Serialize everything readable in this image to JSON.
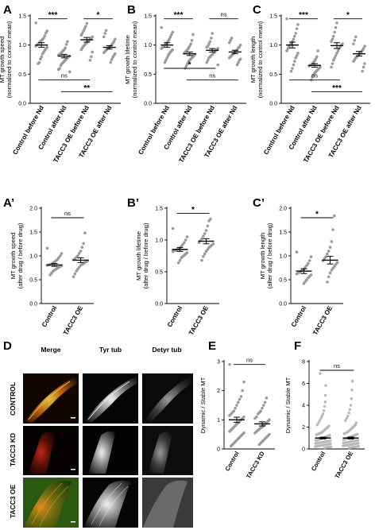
{
  "figure": {
    "panel_letters": [
      "A",
      "B",
      "C",
      "A’",
      "B’",
      "C’",
      "D",
      "E",
      "F"
    ]
  },
  "chart_data": [
    {
      "panel": "A",
      "type": "scatter",
      "ylabel": [
        "MT growth speed",
        "(normalized to control mean)"
      ],
      "categories": [
        "Control before Nd",
        "Control after Nd",
        "TACC3 OE before Nd",
        "TACC3 OE after Nd"
      ],
      "ylim": [
        0.0,
        1.5
      ],
      "yticks": [
        "0.0",
        "0.5",
        "1.0",
        "1.5"
      ],
      "means": [
        1.0,
        0.81,
        1.09,
        0.96
      ],
      "sem": [
        0.04,
        0.03,
        0.04,
        0.03
      ],
      "points": [
        [
          1.38,
          1.24,
          1.21,
          1.16,
          1.12,
          1.1,
          1.08,
          1.06,
          1.04,
          1.02,
          1.0,
          0.98,
          0.96,
          0.94,
          0.91,
          0.88,
          0.85,
          0.8,
          0.76,
          0.7,
          0.68
        ],
        [
          1.06,
          1.01,
          0.95,
          0.92,
          0.9,
          0.88,
          0.86,
          0.84,
          0.83,
          0.81,
          0.8,
          0.78,
          0.76,
          0.74,
          0.72,
          0.7,
          0.68,
          0.65,
          0.6,
          0.58,
          0.54
        ],
        [
          1.37,
          1.32,
          1.28,
          1.24,
          1.2,
          1.17,
          1.14,
          1.12,
          1.1,
          1.08,
          1.06,
          1.04,
          1.02,
          1.0,
          0.98,
          0.95,
          0.92,
          0.88,
          0.8,
          0.74
        ],
        [
          1.25,
          1.2,
          1.14,
          1.1,
          1.06,
          1.03,
          1.0,
          0.98,
          0.96,
          0.95,
          0.93,
          0.91,
          0.89,
          0.87,
          0.85,
          0.82,
          0.79,
          0.75,
          0.7
        ]
      ],
      "significance": [
        {
          "from": 0,
          "to": 1,
          "label": "***",
          "level": 1.45
        },
        {
          "from": 2,
          "to": 3,
          "label": "*",
          "level": 1.45
        },
        {
          "from": 0,
          "to": 2,
          "label": "ns",
          "level": 0.4
        },
        {
          "from": 1,
          "to": 3,
          "label": "**",
          "level": 0.2
        }
      ]
    },
    {
      "panel": "B",
      "type": "scatter",
      "ylabel": [
        "MT growth lifetime",
        "(normalized to control mean)"
      ],
      "categories": [
        "Control before Nd",
        "Control after Nd",
        "TACC3 OE before Nd",
        "TACC3 OE after Nd"
      ],
      "ylim": [
        0.0,
        1.5
      ],
      "yticks": [
        "0.0",
        "0.5",
        "1.0",
        "1.5"
      ],
      "means": [
        1.0,
        0.85,
        0.91,
        0.88
      ],
      "sem": [
        0.04,
        0.03,
        0.03,
        0.03
      ],
      "points": [
        [
          1.3,
          1.22,
          1.18,
          1.14,
          1.1,
          1.07,
          1.04,
          1.02,
          1.0,
          0.98,
          0.96,
          0.94,
          0.92,
          0.9,
          0.88,
          0.85,
          0.82,
          0.78,
          0.74,
          0.7
        ],
        [
          1.18,
          1.08,
          1.02,
          0.98,
          0.95,
          0.92,
          0.9,
          0.88,
          0.86,
          0.84,
          0.82,
          0.8,
          0.78,
          0.76,
          0.74,
          0.72,
          0.68,
          0.64,
          0.6
        ],
        [
          1.2,
          1.12,
          1.06,
          1.02,
          0.98,
          0.96,
          0.94,
          0.92,
          0.9,
          0.88,
          0.86,
          0.84,
          0.82,
          0.8,
          0.78,
          0.74,
          0.7,
          0.66
        ],
        [
          1.12,
          1.08,
          1.04,
          1.0,
          0.97,
          0.95,
          0.92,
          0.9,
          0.88,
          0.86,
          0.84,
          0.82,
          0.8,
          0.78,
          0.76,
          0.74,
          0.7,
          0.66
        ]
      ],
      "significance": [
        {
          "from": 0,
          "to": 1,
          "label": "***",
          "level": 1.45
        },
        {
          "from": 2,
          "to": 3,
          "label": "ns",
          "level": 1.45
        },
        {
          "from": 0,
          "to": 2,
          "label": "*",
          "level": 0.6
        },
        {
          "from": 1,
          "to": 3,
          "label": "ns",
          "level": 0.4
        }
      ]
    },
    {
      "panel": "C",
      "type": "scatter",
      "ylabel": [
        "MT growth length",
        "(normalized to control mean)"
      ],
      "categories": [
        "Control before Nd",
        "Control after Nd",
        "TACC3 OE before Nd",
        "TACC3 OE after Nd"
      ],
      "ylim": [
        0.0,
        1.5
      ],
      "yticks": [
        "0.0",
        "0.5",
        "1.0",
        "1.5"
      ],
      "means": [
        1.0,
        0.65,
        0.99,
        0.85
      ],
      "sem": [
        0.05,
        0.03,
        0.05,
        0.04
      ],
      "points": [
        [
          1.45,
          1.35,
          1.28,
          1.2,
          1.15,
          1.1,
          1.06,
          1.03,
          1.0,
          0.97,
          0.94,
          0.9,
          0.86,
          0.82,
          0.78,
          0.72,
          0.66,
          0.6,
          0.55
        ],
        [
          0.9,
          0.8,
          0.76,
          0.73,
          0.7,
          0.68,
          0.66,
          0.65,
          0.64,
          0.62,
          0.6,
          0.58,
          0.56,
          0.54,
          0.52,
          0.49,
          0.45,
          0.4
        ],
        [
          1.38,
          1.3,
          1.22,
          1.15,
          1.1,
          1.06,
          1.02,
          1.0,
          0.97,
          0.94,
          0.9,
          0.86,
          0.82,
          0.78,
          0.74,
          0.68,
          0.62
        ],
        [
          1.14,
          1.08,
          1.02,
          0.98,
          0.94,
          0.91,
          0.88,
          0.86,
          0.84,
          0.82,
          0.8,
          0.78,
          0.75,
          0.72,
          0.68,
          0.62,
          0.55
        ]
      ],
      "significance": [
        {
          "from": 0,
          "to": 1,
          "label": "***",
          "level": 1.45
        },
        {
          "from": 2,
          "to": 3,
          "label": "*",
          "level": 1.45
        },
        {
          "from": 0,
          "to": 2,
          "label": "ns",
          "level": 0.4
        },
        {
          "from": 1,
          "to": 3,
          "label": "***",
          "level": 0.2
        }
      ]
    },
    {
      "panel": "A’",
      "type": "scatter",
      "ylabel": [
        "MT growth speed",
        "(after drug / before drug)"
      ],
      "categories": [
        "Control",
        "TACC3 OE"
      ],
      "ylim": [
        0.0,
        2.0
      ],
      "yticks": [
        "0.0",
        "0.5",
        "1.0",
        "1.5",
        "2.0"
      ],
      "means": [
        0.81,
        0.91
      ],
      "sem": [
        0.03,
        0.05
      ],
      "points": [
        [
          1.16,
          1.05,
          1.0,
          0.96,
          0.92,
          0.9,
          0.87,
          0.85,
          0.83,
          0.82,
          0.81,
          0.8,
          0.79,
          0.78,
          0.76,
          0.74,
          0.72,
          0.7,
          0.68,
          0.64,
          0.6
        ],
        [
          1.48,
          1.26,
          1.18,
          1.1,
          1.05,
          1.0,
          0.97,
          0.94,
          0.92,
          0.9,
          0.88,
          0.86,
          0.84,
          0.82,
          0.8,
          0.76,
          0.72,
          0.68,
          0.62,
          0.56
        ]
      ],
      "significance": [
        {
          "from": 0,
          "to": 1,
          "label": "ns",
          "level": 1.8
        }
      ]
    },
    {
      "panel": "B’",
      "type": "scatter",
      "ylabel": [
        "MT growth lifetime",
        "(after drug / before drug)"
      ],
      "categories": [
        "Control",
        "TACC3 OE"
      ],
      "ylim": [
        0.0,
        1.5
      ],
      "yticks": [
        "0.0",
        "0.5",
        "1.0",
        "1.5"
      ],
      "means": [
        0.85,
        0.98
      ],
      "sem": [
        0.03,
        0.04
      ],
      "points": [
        [
          1.18,
          1.05,
          1.0,
          0.96,
          0.93,
          0.9,
          0.88,
          0.86,
          0.85,
          0.84,
          0.83,
          0.82,
          0.8,
          0.78,
          0.76,
          0.74,
          0.72,
          0.68,
          0.64
        ],
        [
          1.33,
          1.3,
          1.22,
          1.15,
          1.1,
          1.06,
          1.02,
          0.99,
          0.96,
          0.94,
          0.92,
          0.9,
          0.88,
          0.85,
          0.82,
          0.78,
          0.74,
          0.68
        ]
      ],
      "significance": [
        {
          "from": 0,
          "to": 1,
          "label": "*",
          "level": 1.42
        }
      ]
    },
    {
      "panel": "C’",
      "type": "scatter",
      "ylabel": [
        "MT growth length",
        "(after drug / before drug)"
      ],
      "categories": [
        "Control",
        "TACC3 OE"
      ],
      "ylim": [
        0.0,
        2.0
      ],
      "yticks": [
        "0.0",
        "0.5",
        "1.0",
        "1.5",
        "2.0"
      ],
      "means": [
        0.68,
        0.91
      ],
      "sem": [
        0.05,
        0.08
      ],
      "points": [
        [
          1.08,
          0.98,
          0.9,
          0.84,
          0.8,
          0.76,
          0.72,
          0.7,
          0.68,
          0.66,
          0.64,
          0.62,
          0.6,
          0.57,
          0.54,
          0.5,
          0.46,
          0.42
        ],
        [
          1.84,
          1.55,
          1.3,
          1.18,
          1.1,
          1.04,
          0.98,
          0.94,
          0.9,
          0.86,
          0.82,
          0.78,
          0.74,
          0.7,
          0.64,
          0.56,
          0.45
        ]
      ],
      "significance": [
        {
          "from": 0,
          "to": 1,
          "label": "*",
          "level": 1.8
        }
      ]
    },
    {
      "panel": "E",
      "type": "scatter",
      "ylabel": [
        "Dynamic / Stable MT"
      ],
      "categories": [
        "Control",
        "TACC3 KD"
      ],
      "ylim": [
        0,
        3
      ],
      "yticks": [
        "0",
        "1",
        "2",
        "3"
      ],
      "means": [
        1.0,
        0.86
      ],
      "sem": [
        0.09,
        0.07
      ],
      "points": [
        [
          2.9,
          2.3,
          2.0,
          1.8,
          1.7,
          1.6,
          1.5,
          1.4,
          1.3,
          1.25,
          1.2,
          1.15,
          1.1,
          1.05,
          1.0,
          0.95,
          0.9,
          0.85,
          0.8,
          0.75,
          0.7,
          0.65,
          0.6,
          0.55,
          0.5,
          0.45,
          0.4,
          0.35,
          0.3,
          0.25,
          0.2,
          0.15,
          0.1
        ],
        [
          1.75,
          1.6,
          1.5,
          1.4,
          1.3,
          1.25,
          1.2,
          1.1,
          1.05,
          1.0,
          0.95,
          0.9,
          0.85,
          0.8,
          0.75,
          0.72,
          0.68,
          0.64,
          0.6,
          0.55,
          0.5,
          0.45,
          0.4,
          0.35,
          0.3,
          0.25,
          0.2,
          0.15
        ]
      ],
      "significance": [
        {
          "from": 0,
          "to": 1,
          "label": "ns",
          "level": 2.9
        }
      ]
    },
    {
      "panel": "F",
      "type": "scatter",
      "ylabel": [
        "Dynamic / Stable MT"
      ],
      "categories": [
        "Control",
        "TACC3 OE"
      ],
      "ylim": [
        0,
        8
      ],
      "yticks": [
        "0",
        "2",
        "4",
        "6",
        "8"
      ],
      "means": [
        1.0,
        1.0
      ],
      "sem": [
        0.08,
        0.09
      ],
      "points": [
        [
          6.9,
          5.8,
          4.9,
          4.3,
          3.9,
          3.5,
          3.2,
          3.0,
          2.8,
          2.6,
          2.4,
          2.2,
          2.1,
          2.0,
          1.9,
          1.8,
          1.7,
          1.6,
          1.5,
          1.45,
          1.4,
          1.35,
          1.3,
          1.25,
          1.2,
          1.15,
          1.1,
          1.05,
          1.0,
          0.95,
          0.9,
          0.85,
          0.8,
          0.78,
          0.75,
          0.72,
          0.7,
          0.68,
          0.65,
          0.62,
          0.6,
          0.58,
          0.55,
          0.52,
          0.5,
          0.48,
          0.45,
          0.42,
          0.4,
          0.38,
          0.35,
          0.32,
          0.3,
          0.28,
          0.25,
          0.22,
          0.2,
          0.18,
          0.15,
          0.12,
          0.1
        ],
        [
          6.2,
          5.4,
          4.6,
          4.0,
          3.6,
          3.3,
          3.0,
          2.8,
          2.6,
          2.4,
          2.2,
          2.1,
          2.0,
          1.9,
          1.8,
          1.7,
          1.6,
          1.5,
          1.45,
          1.4,
          1.35,
          1.3,
          1.25,
          1.2,
          1.15,
          1.1,
          1.05,
          1.0,
          0.95,
          0.9,
          0.85,
          0.8,
          0.78,
          0.75,
          0.72,
          0.7,
          0.68,
          0.65,
          0.62,
          0.6,
          0.58,
          0.55,
          0.52,
          0.5,
          0.48,
          0.45,
          0.42,
          0.4,
          0.38,
          0.35,
          0.32,
          0.3,
          0.28,
          0.25,
          0.22,
          0.2,
          0.18,
          0.15,
          0.12,
          0.1
        ]
      ],
      "significance": [
        {
          "from": 0,
          "to": 1,
          "label": "ns",
          "level": 7.2
        }
      ]
    }
  ],
  "micrographs": {
    "column_titles": [
      "Merge",
      "Tyr tub",
      "Detyr tub"
    ],
    "row_labels": [
      "CONTROL",
      "TACC3 KD",
      "TACC3 OE"
    ]
  }
}
